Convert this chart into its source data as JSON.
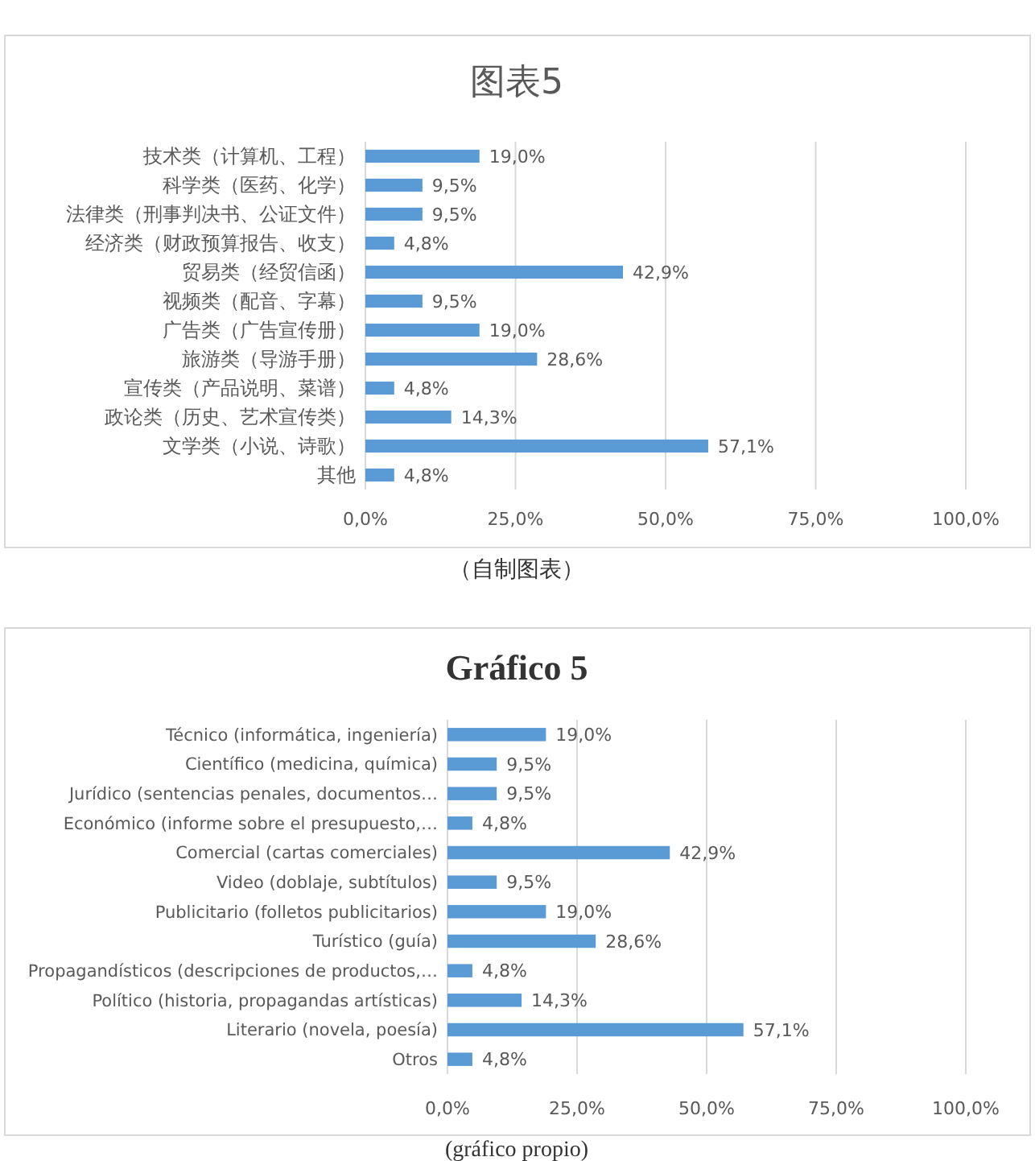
{
  "chart_data": [
    {
      "type": "bar",
      "orientation": "horizontal",
      "title": "图表5",
      "categories": [
        "技术类（计算机、工程）",
        "科学类（医药、化学）",
        "法律类（刑事判决书、公证文件）",
        "经济类（财政预算报告、收支）",
        "贸易类（经贸信函）",
        "视频类（配音、字幕）",
        "广告类（广告宣传册）",
        "旅游类（导游手册）",
        "宣传类（产品说明、菜谱）",
        "政论类（历史、艺术宣传类）",
        "文学类（小说、诗歌）",
        "其他"
      ],
      "values": [
        19.0,
        9.5,
        9.5,
        4.8,
        42.9,
        9.5,
        19.0,
        28.6,
        4.8,
        14.3,
        57.1,
        4.8
      ],
      "value_labels": [
        "19,0%",
        "9,5%",
        "9,5%",
        "4,8%",
        "42,9%",
        "9,5%",
        "19,0%",
        "28,6%",
        "4,8%",
        "14,3%",
        "57,1%",
        "4,8%"
      ],
      "color": "#5b9bd5",
      "xlim": [
        0,
        100
      ],
      "xticks": [
        {
          "value": 0,
          "label": "0,0%"
        },
        {
          "value": 25,
          "label": "25,0%"
        },
        {
          "value": 50,
          "label": "50,0%"
        },
        {
          "value": 75,
          "label": "75,0%"
        },
        {
          "value": 100,
          "label": "100,0%"
        }
      ],
      "grid": "x",
      "annotations": [
        "（自制图表）"
      ]
    },
    {
      "type": "bar",
      "orientation": "horizontal",
      "title": "Gráfico 5",
      "categories": [
        "Técnico (informática, ingeniería)",
        "Científico (medicina, química)",
        "Jurídico (sentencias penales, documentos…",
        "Económico (informe sobre el presupuesto,…",
        "Comercial (cartas comerciales)",
        "Video (doblaje, subtítulos)",
        "Publicitario (folletos publicitarios)",
        "Turístico (guía)",
        "Propagandísticos (descripciones de productos,…",
        "Político (historia, propagandas artísticas)",
        "Literario (novela, poesía)",
        "Otros"
      ],
      "values": [
        19.0,
        9.5,
        9.5,
        4.8,
        42.9,
        9.5,
        19.0,
        28.6,
        4.8,
        14.3,
        57.1,
        4.8
      ],
      "value_labels": [
        "19,0%",
        "9,5%",
        "9,5%",
        "4,8%",
        "42,9%",
        "9,5%",
        "19,0%",
        "28,6%",
        "4,8%",
        "14,3%",
        "57,1%",
        "4,8%"
      ],
      "color": "#5b9bd5",
      "xlim": [
        0,
        100
      ],
      "xticks": [
        {
          "value": 0,
          "label": "0,0%"
        },
        {
          "value": 25,
          "label": "25,0%"
        },
        {
          "value": 50,
          "label": "50,0%"
        },
        {
          "value": 75,
          "label": "75,0%"
        },
        {
          "value": 100,
          "label": "100,0%"
        }
      ],
      "grid": "x",
      "annotations": [
        "(gráfico propio)"
      ]
    }
  ]
}
